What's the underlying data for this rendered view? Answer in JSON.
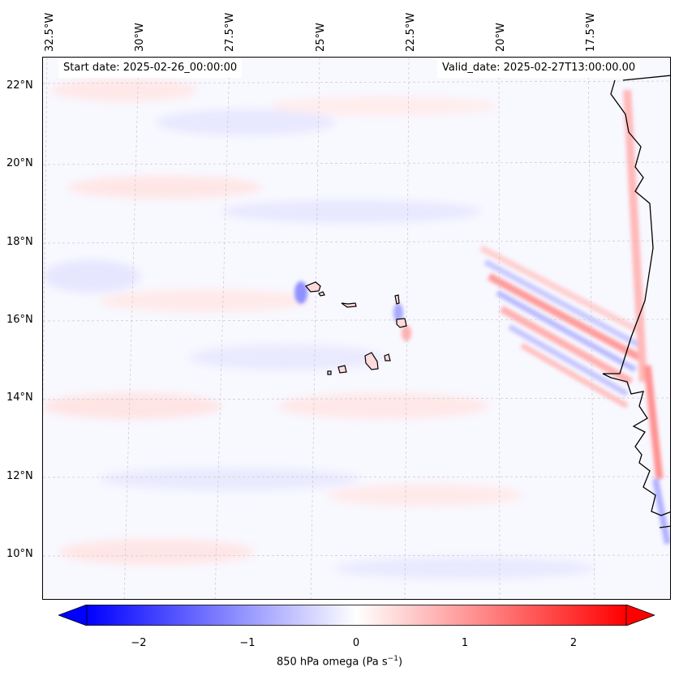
{
  "map": {
    "start_date_text": "Start date: 2025-02-26_00:00:00",
    "valid_date_text": "Valid_date: 2025-02-27T13:00:00.00",
    "longitude_labels": [
      "32.5°W",
      "30°W",
      "27.5°W",
      "25°W",
      "22.5°W",
      "20°W",
      "17.5°W"
    ],
    "latitude_labels": [
      "22°N",
      "20°N",
      "18°N",
      "16°N",
      "14°N",
      "12°N",
      "10°N"
    ],
    "field": "850 hPa omega",
    "colormap": [
      "#0000ff",
      "#ffffff",
      "#ff0000"
    ],
    "coast_color": "#000000",
    "grid": true
  },
  "colorbar": {
    "ticks": [
      "−2",
      "−1",
      "0",
      "1",
      "2"
    ],
    "label": "850 hPa omega (Pa s",
    "label_sup": "−1",
    "label_end": ")",
    "range": [
      -2.6,
      2.6
    ],
    "extend": "both"
  }
}
